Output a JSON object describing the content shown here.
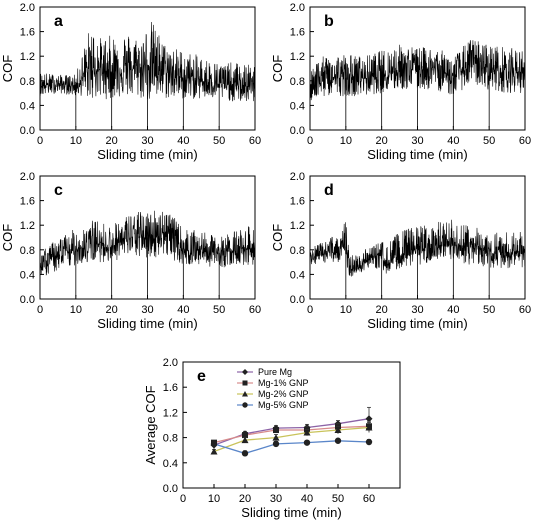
{
  "figure": {
    "panels": [
      {
        "label": "a",
        "xlabel": "Sliding time (min)",
        "ylabel": "COF"
      },
      {
        "label": "b",
        "xlabel": "Sliding time (min)",
        "ylabel": "COF"
      },
      {
        "label": "c",
        "xlabel": "Sliding time (min)",
        "ylabel": "COF"
      },
      {
        "label": "d",
        "xlabel": "Sliding time (min)",
        "ylabel": "COF"
      },
      {
        "label": "e",
        "xlabel": "Sliding time (min)",
        "ylabel": "Average COF"
      }
    ]
  },
  "chart_data": [
    {
      "type": "line",
      "panel": "a",
      "xlabel": "Sliding time (min)",
      "ylabel": "COF",
      "xlim": [
        0,
        60
      ],
      "ylim": [
        0,
        2.0
      ],
      "xticks": [
        "0",
        "10",
        "20",
        "30",
        "40",
        "50",
        "60"
      ],
      "yticks": [
        "0.0",
        "0.4",
        "0.8",
        "1.2",
        "1.6",
        "2.0"
      ],
      "trace_color": "#000000",
      "x": [
        0,
        5,
        10,
        12,
        14,
        17,
        20,
        24,
        28,
        31,
        35,
        40,
        45,
        50,
        55,
        60
      ],
      "y_mean": [
        0.72,
        0.75,
        0.72,
        0.85,
        1.0,
        0.98,
        0.95,
        1.0,
        0.98,
        1.1,
        0.95,
        0.85,
        0.8,
        0.75,
        0.72,
        0.7
      ],
      "y_band_low": [
        0.55,
        0.6,
        0.55,
        0.55,
        0.5,
        0.5,
        0.5,
        0.55,
        0.5,
        0.45,
        0.5,
        0.5,
        0.5,
        0.5,
        0.45,
        0.45
      ],
      "y_band_high": [
        0.95,
        0.9,
        0.9,
        1.3,
        1.7,
        1.5,
        1.55,
        1.6,
        1.5,
        1.8,
        1.4,
        1.3,
        1.2,
        1.1,
        1.1,
        1.05
      ],
      "dips_x": [
        10,
        20,
        30,
        40,
        50
      ]
    },
    {
      "type": "line",
      "panel": "b",
      "xlabel": "Sliding time (min)",
      "ylabel": "COF",
      "xlim": [
        0,
        60
      ],
      "ylim": [
        0,
        2.0
      ],
      "xticks": [
        "0",
        "10",
        "20",
        "30",
        "40",
        "50",
        "60"
      ],
      "yticks": [
        "0.0",
        "0.4",
        "0.8",
        "1.2",
        "1.6",
        "2.0"
      ],
      "trace_color": "#000000",
      "x": [
        0,
        5,
        10,
        15,
        20,
        25,
        30,
        35,
        40,
        45,
        50,
        55,
        60
      ],
      "y_mean": [
        0.8,
        0.85,
        0.85,
        0.85,
        0.9,
        1.0,
        1.0,
        1.0,
        0.85,
        1.1,
        1.0,
        0.95,
        0.95
      ],
      "y_band_low": [
        0.45,
        0.55,
        0.55,
        0.55,
        0.6,
        0.65,
        0.65,
        0.65,
        0.55,
        0.75,
        0.65,
        0.6,
        0.6
      ],
      "y_band_high": [
        1.05,
        1.25,
        1.25,
        1.2,
        1.3,
        1.4,
        1.35,
        1.35,
        1.2,
        1.5,
        1.4,
        1.35,
        1.3
      ],
      "dips_x": [
        10,
        20,
        30,
        40,
        50
      ]
    },
    {
      "type": "line",
      "panel": "c",
      "xlabel": "Sliding time (min)",
      "ylabel": "COF",
      "xlim": [
        0,
        60
      ],
      "ylim": [
        0,
        2.0
      ],
      "xticks": [
        "0",
        "10",
        "20",
        "30",
        "40",
        "50",
        "60"
      ],
      "yticks": [
        "0.0",
        "0.4",
        "0.8",
        "1.2",
        "1.6",
        "2.0"
      ],
      "trace_color": "#000000",
      "x": [
        0,
        5,
        10,
        15,
        20,
        25,
        30,
        35,
        40,
        45,
        50,
        55,
        60
      ],
      "y_mean": [
        0.55,
        0.7,
        0.8,
        0.9,
        0.85,
        1.0,
        1.0,
        1.1,
        0.8,
        0.8,
        0.75,
        0.8,
        0.85
      ],
      "y_band_low": [
        0.35,
        0.45,
        0.55,
        0.6,
        0.6,
        0.7,
        0.65,
        0.7,
        0.55,
        0.55,
        0.5,
        0.55,
        0.55
      ],
      "y_band_high": [
        0.75,
        1.0,
        1.15,
        1.3,
        1.2,
        1.4,
        1.45,
        1.5,
        1.15,
        1.1,
        1.0,
        1.15,
        1.2
      ],
      "dips_x": [
        10,
        20,
        30,
        40,
        50
      ]
    },
    {
      "type": "line",
      "panel": "d",
      "xlabel": "Sliding time (min)",
      "ylabel": "COF",
      "xlim": [
        0,
        60
      ],
      "ylim": [
        0,
        2.0
      ],
      "xticks": [
        "0",
        "10",
        "20",
        "30",
        "40",
        "50",
        "60"
      ],
      "yticks": [
        "0.0",
        "0.4",
        "0.8",
        "1.2",
        "1.6",
        "2.0"
      ],
      "trace_color": "#000000",
      "x": [
        0,
        5,
        10,
        11,
        15,
        20,
        21,
        25,
        30,
        35,
        40,
        45,
        50,
        55,
        60
      ],
      "y_mean": [
        0.65,
        0.75,
        0.85,
        0.45,
        0.6,
        0.75,
        0.55,
        0.7,
        0.8,
        0.85,
        0.85,
        0.85,
        0.75,
        0.75,
        0.75
      ],
      "y_band_low": [
        0.55,
        0.6,
        0.6,
        0.35,
        0.45,
        0.5,
        0.4,
        0.5,
        0.55,
        0.6,
        0.6,
        0.55,
        0.5,
        0.5,
        0.5
      ],
      "y_band_high": [
        0.85,
        0.95,
        1.3,
        0.7,
        0.8,
        0.95,
        0.9,
        1.1,
        1.2,
        1.25,
        1.3,
        1.2,
        1.1,
        1.1,
        1.1
      ],
      "dips_x": [
        10,
        20,
        30,
        40,
        50
      ]
    },
    {
      "type": "line",
      "panel": "e",
      "xlabel": "Sliding time (min)",
      "ylabel": "Average COF",
      "xlim": [
        0,
        70
      ],
      "ylim": [
        0,
        2.0
      ],
      "xticks": [
        "0",
        "10",
        "20",
        "30",
        "40",
        "50",
        "60"
      ],
      "yticks": [
        "0.0",
        "0.4",
        "0.8",
        "1.2",
        "1.6",
        "2.0"
      ],
      "legend_position": "top-left",
      "x": [
        10,
        20,
        30,
        40,
        50,
        60
      ],
      "series": [
        {
          "name": "Pure Mg",
          "marker": "diamond",
          "color": "#8c63a6",
          "values": [
            0.68,
            0.86,
            0.95,
            0.96,
            1.02,
            1.1
          ],
          "err": [
            0.03,
            0.04,
            0.04,
            0.05,
            0.05,
            0.18
          ]
        },
        {
          "name": "Mg-1% GNP",
          "marker": "square",
          "color": "#d78b8b",
          "values": [
            0.72,
            0.84,
            0.92,
            0.92,
            0.96,
            0.98
          ],
          "err": [
            0.03,
            0.04,
            0.04,
            0.06,
            0.06,
            0.08
          ]
        },
        {
          "name": "Mg-2% GNP",
          "marker": "triangle",
          "color": "#c9c35a",
          "values": [
            0.58,
            0.76,
            0.8,
            0.88,
            0.92,
            0.96
          ],
          "err": [
            0.03,
            0.04,
            0.05,
            0.05,
            0.06,
            0.08
          ]
        },
        {
          "name": "Mg-5% GNP",
          "marker": "circle",
          "color": "#5a86c9",
          "values": [
            0.7,
            0.55,
            0.7,
            0.72,
            0.75,
            0.73
          ],
          "err": [
            0.03,
            0.04,
            0.04,
            0.03,
            0.03,
            0.04
          ]
        }
      ]
    }
  ]
}
